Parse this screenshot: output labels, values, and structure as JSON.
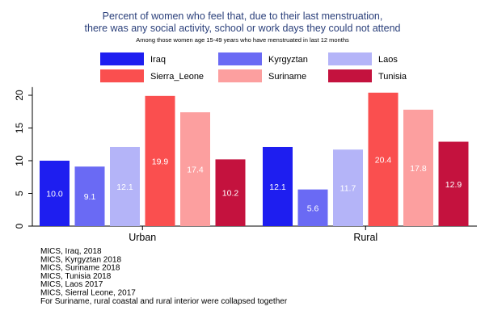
{
  "chart_data": {
    "type": "bar",
    "title_lines": [
      "Percent of women who feel that, due to their last menstruation,",
      "there was any social activity, school or work days they could not attend"
    ],
    "subtitle": "Among those women age 15-49 years who have menstruated in last 12 months",
    "categories": [
      "Urban",
      "Rural"
    ],
    "series": [
      {
        "name": "Iraq",
        "color": "#1e1ef0",
        "values": [
          10.0,
          12.1
        ],
        "labels": [
          "10.0",
          "12.1"
        ]
      },
      {
        "name": "Kyrgyztan",
        "color": "#6a6af4",
        "values": [
          9.1,
          5.6
        ],
        "labels": [
          "9.1",
          "5.6"
        ]
      },
      {
        "name": "Laos",
        "color": "#b4b4f8",
        "values": [
          12.1,
          11.7
        ],
        "labels": [
          "12.1",
          "11.7"
        ]
      },
      {
        "name": "Sierra_Leone",
        "color": "#fa4f4f",
        "values": [
          19.9,
          20.4
        ],
        "labels": [
          "19.9",
          "20.4"
        ]
      },
      {
        "name": "Suriname",
        "color": "#fc9f9f",
        "values": [
          17.4,
          17.8
        ],
        "labels": [
          "17.4",
          "17.8"
        ]
      },
      {
        "name": "Tunisia",
        "color": "#c4123e",
        "values": [
          10.2,
          12.9
        ],
        "labels": [
          "10.2",
          "12.9"
        ]
      }
    ],
    "yticks": [
      0,
      5,
      10,
      15,
      20
    ],
    "ylim": [
      0,
      21
    ],
    "legend_position": "top",
    "grid": false
  },
  "notes": [
    "MICS, Iraq, 2018",
    "MICS, Kyrgyztan 2018",
    "MICS, Suriname 2018",
    "MICS, Tunisia 2018",
    "MICS, Laos 2017",
    "MICS, Sierral Leone, 2017",
    "For Suriname, rural coastal and rural interior were collapsed together"
  ]
}
